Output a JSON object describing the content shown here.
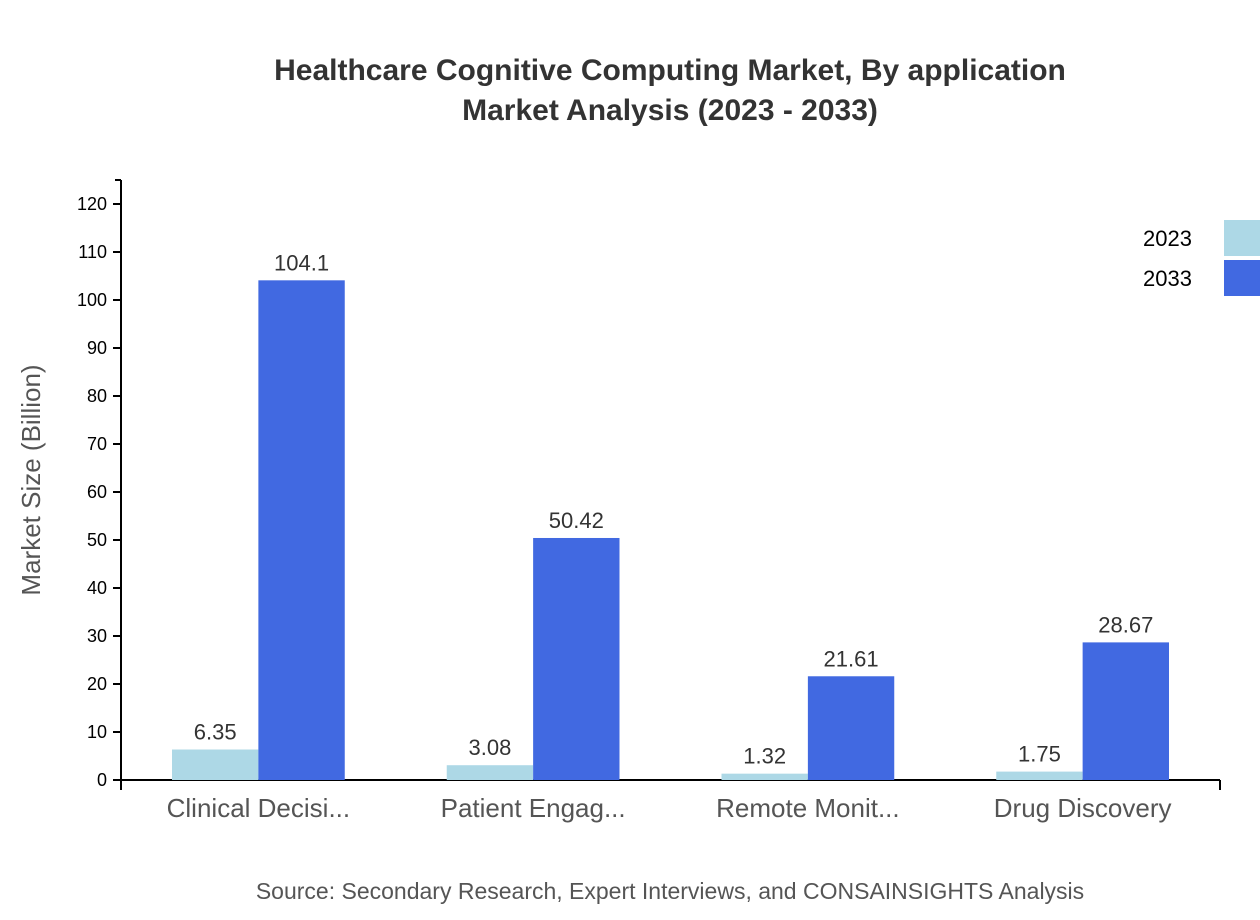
{
  "chart_data": {
    "type": "bar",
    "title": "Healthcare Cognitive Computing Market, By application",
    "subtitle": "Market Analysis (2023 - 2033)",
    "xlabel": "",
    "ylabel": "Market Size (Billion)",
    "ylim": [
      0,
      125
    ],
    "yticks": [
      0,
      10,
      20,
      30,
      40,
      50,
      60,
      70,
      80,
      90,
      100,
      110,
      120
    ],
    "grid": false,
    "legend_position": "top-right",
    "categories": [
      "Clinical Decisi...",
      "Patient Engag...",
      "Remote Monit...",
      "Drug Discovery"
    ],
    "series": [
      {
        "name": "2023",
        "color": "#ADD8E6",
        "values": [
          6.35,
          3.08,
          1.32,
          1.75
        ]
      },
      {
        "name": "2033",
        "color": "#4169E1",
        "values": [
          104.1,
          50.42,
          21.61,
          28.67
        ]
      }
    ],
    "source": "Source: Secondary Research, Expert Interviews, and CONSAINSIGHTS Analysis"
  }
}
